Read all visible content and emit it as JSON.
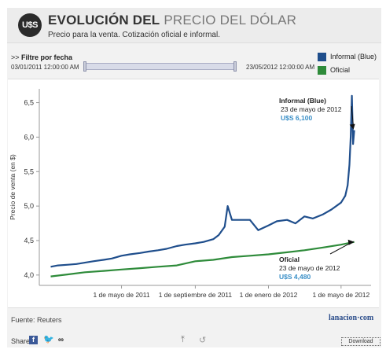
{
  "header": {
    "badge": "U$S",
    "title_strong": "EVOLUCIÓN DEL",
    "title_light": "PRECIO DEL DÓLAR",
    "subtitle": "Precio para la venta. Cotización oficial e informal."
  },
  "filter": {
    "prefix": ">> ",
    "label": "Filtre por fecha",
    "start": "03/01/2011 12:00:00 AM",
    "end": "23/05/2012 12:00:00 AM"
  },
  "legend": [
    {
      "name": "Informal (Blue)",
      "color": "#1f4e8c"
    },
    {
      "name": "Oficial",
      "color": "#2e8b3a"
    }
  ],
  "chart_data": {
    "type": "line",
    "ylabel": "Precio de venta (en $)",
    "ylim": [
      3.85,
      6.7
    ],
    "yticks": [
      "6,5",
      "6,0",
      "5,5",
      "5,0",
      "4,5",
      "4,0"
    ],
    "ytick_values": [
      6.5,
      6.0,
      5.5,
      5.0,
      4.5,
      4.0
    ],
    "xticks": [
      "1 de mayo de 2011",
      "1 de septiembre de 2011",
      "1 de enero de 2012",
      "1 de mayo de 2012"
    ],
    "xtick_values": [
      "2011-05-01",
      "2011-09-01",
      "2012-01-01",
      "2012-05-01"
    ],
    "xlim": [
      "2010-12-15",
      "2012-06-20"
    ],
    "grid": false,
    "series": [
      {
        "name": "Informal (Blue)",
        "color": "#1f4e8c",
        "x": [
          "2011-01-03",
          "2011-01-15",
          "2011-02-01",
          "2011-02-15",
          "2011-03-01",
          "2011-03-15",
          "2011-04-01",
          "2011-04-15",
          "2011-05-01",
          "2011-05-15",
          "2011-06-01",
          "2011-06-15",
          "2011-07-01",
          "2011-07-15",
          "2011-08-01",
          "2011-08-15",
          "2011-09-01",
          "2011-09-15",
          "2011-10-01",
          "2011-10-10",
          "2011-10-20",
          "2011-10-25",
          "2011-11-01",
          "2011-11-10",
          "2011-11-15",
          "2011-12-01",
          "2011-12-15",
          "2012-01-01",
          "2012-01-15",
          "2012-02-01",
          "2012-02-15",
          "2012-03-01",
          "2012-03-15",
          "2012-04-01",
          "2012-04-15",
          "2012-05-01",
          "2012-05-08",
          "2012-05-12",
          "2012-05-15",
          "2012-05-17",
          "2012-05-19",
          "2012-05-21",
          "2012-05-23"
        ],
        "values": [
          4.12,
          4.14,
          4.15,
          4.16,
          4.18,
          4.2,
          4.22,
          4.24,
          4.28,
          4.3,
          4.32,
          4.34,
          4.36,
          4.38,
          4.42,
          4.44,
          4.46,
          4.48,
          4.52,
          4.58,
          4.7,
          5.0,
          4.8,
          4.8,
          4.8,
          4.8,
          4.65,
          4.72,
          4.78,
          4.8,
          4.75,
          4.85,
          4.82,
          4.88,
          4.95,
          5.05,
          5.15,
          5.3,
          5.6,
          6.0,
          6.6,
          5.9,
          6.1
        ]
      },
      {
        "name": "Oficial",
        "color": "#2e8b3a",
        "x": [
          "2011-01-03",
          "2011-02-01",
          "2011-03-01",
          "2011-04-01",
          "2011-05-01",
          "2011-06-01",
          "2011-07-01",
          "2011-08-01",
          "2011-09-01",
          "2011-10-01",
          "2011-11-01",
          "2011-12-01",
          "2012-01-01",
          "2012-02-01",
          "2012-03-01",
          "2012-04-01",
          "2012-05-01",
          "2012-05-23"
        ],
        "values": [
          3.98,
          4.01,
          4.04,
          4.06,
          4.08,
          4.1,
          4.12,
          4.14,
          4.2,
          4.22,
          4.26,
          4.28,
          4.3,
          4.33,
          4.36,
          4.4,
          4.44,
          4.48
        ]
      }
    ],
    "annotations": [
      {
        "series": "Informal (Blue)",
        "title": "Informal (Blue)",
        "date": "23 de mayo de 2012",
        "value": "U$S 6,100"
      },
      {
        "series": "Oficial",
        "title": "Oficial",
        "date": "23 de mayo de 2012",
        "value": "U$S 4,480"
      }
    ]
  },
  "footer": {
    "source": "Fuente: Reuters",
    "logo": "lanacion·com",
    "share_label": "Share",
    "share_fb": "f",
    "share_tw": "🐦",
    "share_link": "∞",
    "export_icon": "⤒",
    "reset_icon": "↺",
    "download": "Download"
  }
}
